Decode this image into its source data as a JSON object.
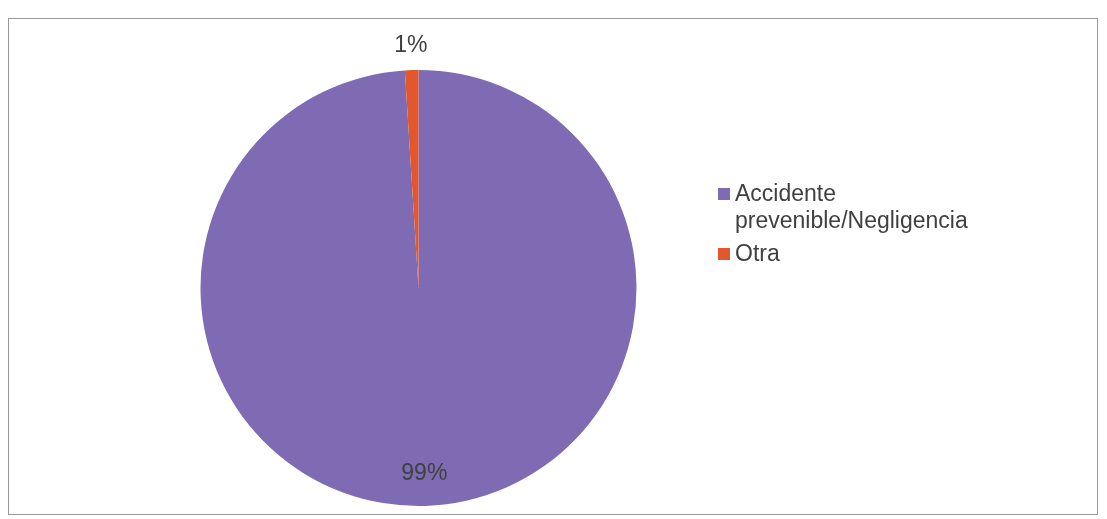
{
  "chart_data": {
    "type": "pie",
    "categories": [
      "Accidente prevenible/Negligencia",
      "Otra"
    ],
    "values": [
      99,
      1
    ],
    "colors": [
      "#7e6bb4",
      "#e2572b"
    ],
    "value_labels": [
      "99%",
      "1%"
    ],
    "legend": "right"
  }
}
